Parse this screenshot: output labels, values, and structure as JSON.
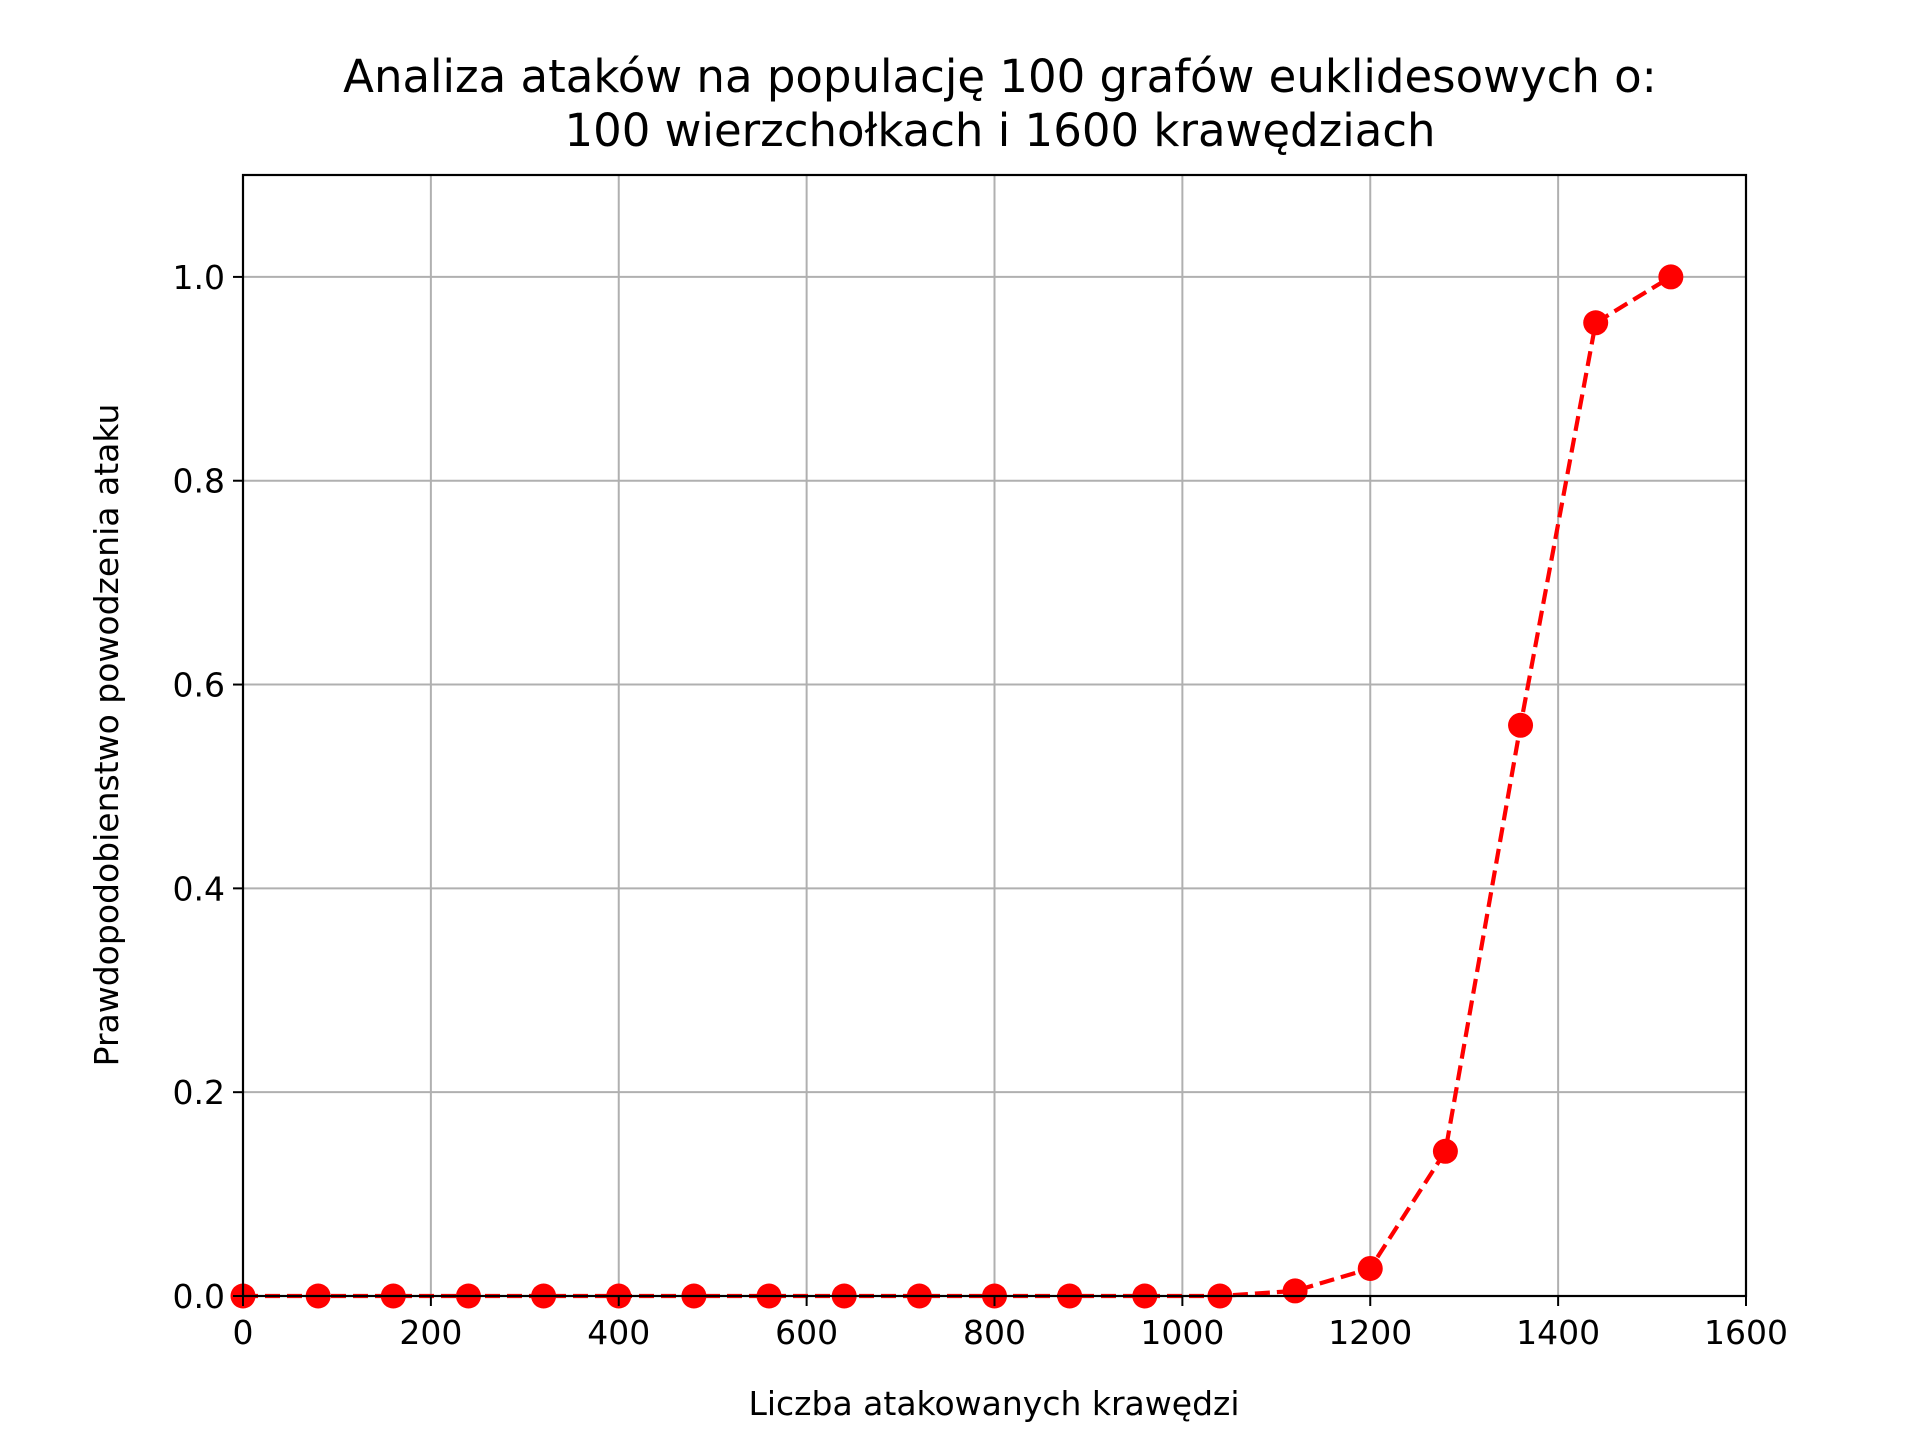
{
  "chart_data": {
    "type": "line",
    "title_lines": [
      "Analiza ataków na populację 100 grafów euklidesowych o:",
      "100 wierzchołkach i 1600 krawędziach"
    ],
    "xlabel": "Liczba atakowanych krawędzi",
    "ylabel": "Prawdopodobienstwo powodzenia ataku",
    "xlim": [
      0,
      1600
    ],
    "ylim": [
      0,
      1.1
    ],
    "xticks": [
      0,
      200,
      400,
      600,
      800,
      1000,
      1200,
      1400,
      1600
    ],
    "xtick_labels": [
      "0",
      "200",
      "400",
      "600",
      "800",
      "1000",
      "1200",
      "1400",
      "1600"
    ],
    "yticks": [
      0.0,
      0.2,
      0.4,
      0.6,
      0.8,
      1.0
    ],
    "ytick_labels": [
      "0.0",
      "0.2",
      "0.4",
      "0.6",
      "0.8",
      "1.0"
    ],
    "grid": true,
    "series": [
      {
        "color": "#ff0000",
        "line_style": "dashed",
        "marker": "circle",
        "x": [
          0,
          80,
          160,
          240,
          320,
          400,
          480,
          560,
          640,
          720,
          800,
          880,
          960,
          1040,
          1120,
          1200,
          1280,
          1360,
          1440,
          1520
        ],
        "y": [
          0,
          0,
          0,
          0,
          0,
          0,
          0,
          0,
          0,
          0,
          0,
          0,
          0,
          0,
          0.005,
          0.027,
          0.142,
          0.56,
          0.955,
          1.0
        ]
      }
    ]
  }
}
